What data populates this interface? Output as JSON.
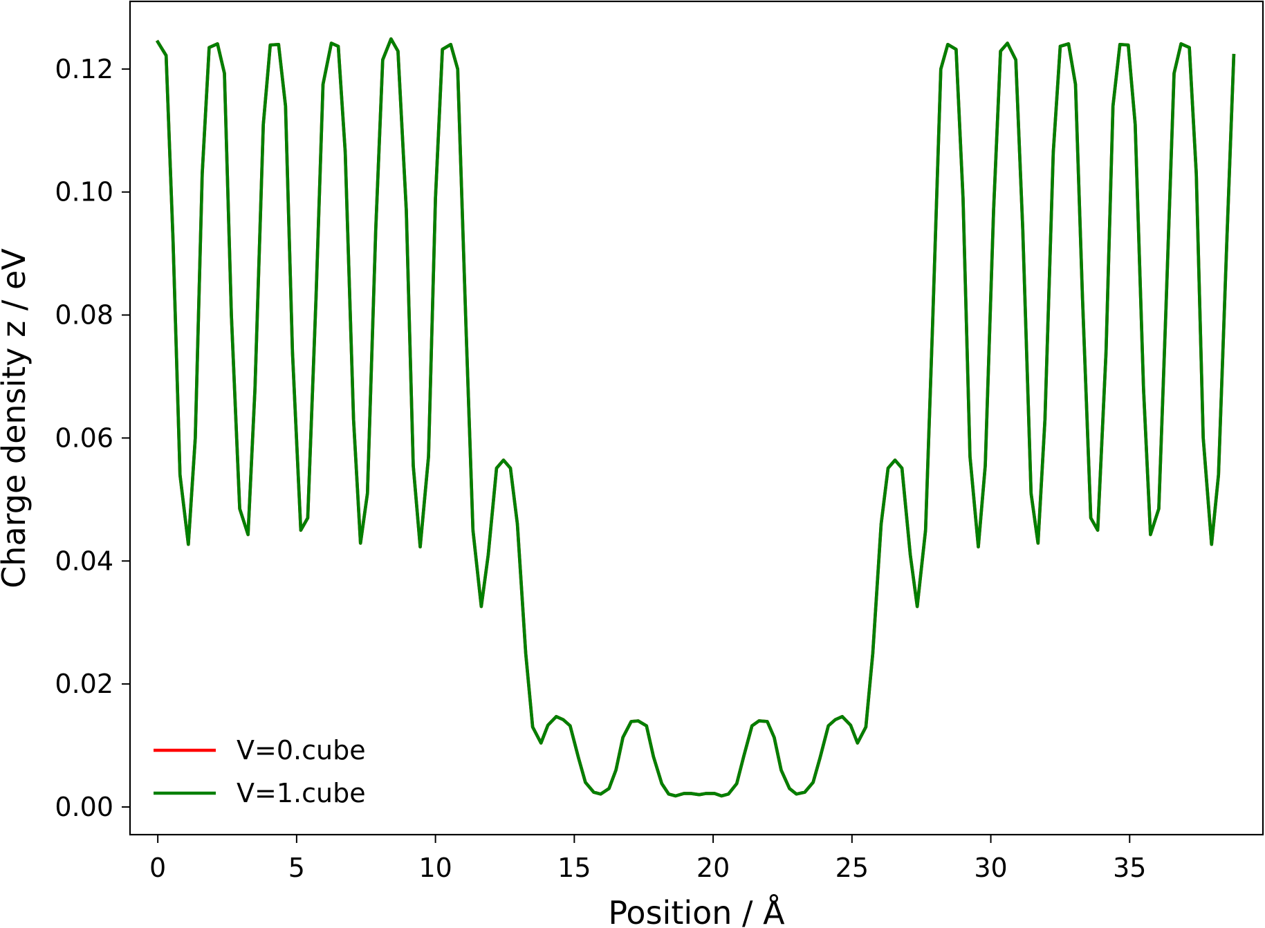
{
  "chart_data": {
    "type": "line",
    "title": "",
    "xlabel": "Position / Å",
    "ylabel": "Charge density z / eV",
    "xlim": [
      -1.0,
      39.8
    ],
    "ylim": [
      -0.0045,
      0.131
    ],
    "xticks": [
      {
        "value": 0,
        "label": "0"
      },
      {
        "value": 5,
        "label": "5"
      },
      {
        "value": 10,
        "label": "10"
      },
      {
        "value": 15,
        "label": "15"
      },
      {
        "value": 20,
        "label": "20"
      },
      {
        "value": 25,
        "label": "25"
      },
      {
        "value": 30,
        "label": "30"
      },
      {
        "value": 35,
        "label": "35"
      }
    ],
    "yticks": [
      {
        "value": 0.0,
        "label": "0.00"
      },
      {
        "value": 0.02,
        "label": "0.02"
      },
      {
        "value": 0.04,
        "label": "0.04"
      },
      {
        "value": 0.06,
        "label": "0.06"
      },
      {
        "value": 0.08,
        "label": "0.08"
      },
      {
        "value": 0.1,
        "label": "0.10"
      },
      {
        "value": 0.12,
        "label": "0.12"
      }
    ],
    "grid": false,
    "legend_position": "lower-left",
    "series": [
      {
        "name": "V=0.cube",
        "color": "#ff0000",
        "points": [
          [
            0.0,
            0.1244
          ],
          [
            0.3,
            0.1222
          ],
          [
            0.55,
            0.092
          ],
          [
            0.8,
            0.054
          ],
          [
            1.1,
            0.0427
          ],
          [
            1.35,
            0.06
          ],
          [
            1.6,
            0.103
          ],
          [
            1.85,
            0.1235
          ],
          [
            2.15,
            0.1241
          ],
          [
            2.4,
            0.1193
          ],
          [
            2.65,
            0.08
          ],
          [
            2.95,
            0.0485
          ],
          [
            3.25,
            0.0443
          ],
          [
            3.5,
            0.068
          ],
          [
            3.8,
            0.111
          ],
          [
            4.05,
            0.1239
          ],
          [
            4.35,
            0.124
          ],
          [
            4.6,
            0.114
          ],
          [
            4.85,
            0.074
          ],
          [
            5.15,
            0.045
          ],
          [
            5.4,
            0.047
          ],
          [
            5.7,
            0.083
          ],
          [
            5.95,
            0.1175
          ],
          [
            6.25,
            0.1242
          ],
          [
            6.5,
            0.1237
          ],
          [
            6.75,
            0.1065
          ],
          [
            7.05,
            0.063
          ],
          [
            7.3,
            0.0429
          ],
          [
            7.55,
            0.051
          ],
          [
            7.85,
            0.094
          ],
          [
            8.1,
            0.1215
          ],
          [
            8.4,
            0.1249
          ],
          [
            8.65,
            0.1229
          ],
          [
            8.95,
            0.097
          ],
          [
            9.2,
            0.0555
          ],
          [
            9.45,
            0.0423
          ],
          [
            9.75,
            0.057
          ],
          [
            10.0,
            0.099
          ],
          [
            10.25,
            0.1232
          ],
          [
            10.55,
            0.124
          ],
          [
            10.8,
            0.12
          ],
          [
            11.1,
            0.078
          ],
          [
            11.35,
            0.045
          ],
          [
            11.65,
            0.0326
          ],
          [
            11.9,
            0.041
          ],
          [
            12.2,
            0.0551
          ],
          [
            12.45,
            0.0564
          ],
          [
            12.7,
            0.0551
          ],
          [
            12.95,
            0.046
          ],
          [
            13.25,
            0.025
          ],
          [
            13.5,
            0.013
          ],
          [
            13.8,
            0.0104
          ],
          [
            14.05,
            0.0133
          ],
          [
            14.35,
            0.0147
          ],
          [
            14.6,
            0.0142
          ],
          [
            14.85,
            0.0132
          ],
          [
            15.15,
            0.008
          ],
          [
            15.4,
            0.004
          ],
          [
            15.7,
            0.0024
          ],
          [
            15.95,
            0.0021
          ],
          [
            16.25,
            0.003
          ],
          [
            16.5,
            0.006
          ],
          [
            16.75,
            0.0113
          ],
          [
            17.05,
            0.0139
          ],
          [
            17.3,
            0.014
          ],
          [
            17.6,
            0.0132
          ],
          [
            17.85,
            0.0082
          ],
          [
            18.15,
            0.0038
          ],
          [
            18.4,
            0.0021
          ],
          [
            18.65,
            0.0018
          ],
          [
            18.95,
            0.0022
          ],
          [
            19.2,
            0.0022
          ],
          [
            19.5,
            0.002
          ],
          [
            19.75,
            0.0022
          ],
          [
            20.05,
            0.0022
          ],
          [
            20.3,
            0.0018
          ],
          [
            20.55,
            0.0021
          ],
          [
            20.85,
            0.0038
          ],
          [
            21.1,
            0.0082
          ],
          [
            21.4,
            0.0132
          ],
          [
            21.65,
            0.014
          ],
          [
            21.95,
            0.0139
          ],
          [
            22.2,
            0.0113
          ],
          [
            22.45,
            0.006
          ],
          [
            22.75,
            0.003
          ],
          [
            23.0,
            0.0021
          ],
          [
            23.3,
            0.0024
          ],
          [
            23.6,
            0.004
          ],
          [
            23.85,
            0.008
          ],
          [
            24.15,
            0.0132
          ],
          [
            24.4,
            0.0142
          ],
          [
            24.65,
            0.0147
          ],
          [
            24.95,
            0.0133
          ],
          [
            25.2,
            0.0104
          ],
          [
            25.5,
            0.013
          ],
          [
            25.75,
            0.025
          ],
          [
            26.05,
            0.046
          ],
          [
            26.3,
            0.0551
          ],
          [
            26.55,
            0.0564
          ],
          [
            26.8,
            0.0551
          ],
          [
            27.1,
            0.041
          ],
          [
            27.35,
            0.0326
          ],
          [
            27.65,
            0.045
          ],
          [
            27.9,
            0.078
          ],
          [
            28.2,
            0.12
          ],
          [
            28.45,
            0.124
          ],
          [
            28.75,
            0.1232
          ],
          [
            29.0,
            0.099
          ],
          [
            29.25,
            0.057
          ],
          [
            29.55,
            0.0423
          ],
          [
            29.8,
            0.0555
          ],
          [
            30.1,
            0.097
          ],
          [
            30.35,
            0.1229
          ],
          [
            30.6,
            0.1242
          ],
          [
            30.9,
            0.1215
          ],
          [
            31.15,
            0.094
          ],
          [
            31.45,
            0.051
          ],
          [
            31.7,
            0.0429
          ],
          [
            31.95,
            0.063
          ],
          [
            32.25,
            0.1065
          ],
          [
            32.5,
            0.1237
          ],
          [
            32.8,
            0.1241
          ],
          [
            33.05,
            0.1175
          ],
          [
            33.3,
            0.083
          ],
          [
            33.6,
            0.047
          ],
          [
            33.85,
            0.045
          ],
          [
            34.15,
            0.074
          ],
          [
            34.4,
            0.114
          ],
          [
            34.65,
            0.124
          ],
          [
            34.95,
            0.1239
          ],
          [
            35.2,
            0.111
          ],
          [
            35.5,
            0.068
          ],
          [
            35.75,
            0.0443
          ],
          [
            36.05,
            0.0485
          ],
          [
            36.3,
            0.08
          ],
          [
            36.6,
            0.1193
          ],
          [
            36.85,
            0.1241
          ],
          [
            37.15,
            0.1235
          ],
          [
            37.4,
            0.103
          ],
          [
            37.65,
            0.06
          ],
          [
            37.95,
            0.0427
          ],
          [
            38.2,
            0.054
          ],
          [
            38.5,
            0.092
          ],
          [
            38.75,
            0.1222
          ]
        ]
      },
      {
        "name": "V=1.cube",
        "color": "#007f00",
        "points": [
          [
            0.0,
            0.1244
          ],
          [
            0.3,
            0.1222
          ],
          [
            0.55,
            0.092
          ],
          [
            0.8,
            0.054
          ],
          [
            1.1,
            0.0427
          ],
          [
            1.35,
            0.06
          ],
          [
            1.6,
            0.103
          ],
          [
            1.85,
            0.1235
          ],
          [
            2.15,
            0.1241
          ],
          [
            2.4,
            0.1193
          ],
          [
            2.65,
            0.08
          ],
          [
            2.95,
            0.0485
          ],
          [
            3.25,
            0.0443
          ],
          [
            3.5,
            0.068
          ],
          [
            3.8,
            0.111
          ],
          [
            4.05,
            0.1239
          ],
          [
            4.35,
            0.124
          ],
          [
            4.6,
            0.114
          ],
          [
            4.85,
            0.074
          ],
          [
            5.15,
            0.045
          ],
          [
            5.4,
            0.047
          ],
          [
            5.7,
            0.083
          ],
          [
            5.95,
            0.1175
          ],
          [
            6.25,
            0.1242
          ],
          [
            6.5,
            0.1237
          ],
          [
            6.75,
            0.1065
          ],
          [
            7.05,
            0.063
          ],
          [
            7.3,
            0.0429
          ],
          [
            7.55,
            0.051
          ],
          [
            7.85,
            0.094
          ],
          [
            8.1,
            0.1215
          ],
          [
            8.4,
            0.1249
          ],
          [
            8.65,
            0.1229
          ],
          [
            8.95,
            0.097
          ],
          [
            9.2,
            0.0555
          ],
          [
            9.45,
            0.0423
          ],
          [
            9.75,
            0.057
          ],
          [
            10.0,
            0.099
          ],
          [
            10.25,
            0.1232
          ],
          [
            10.55,
            0.124
          ],
          [
            10.8,
            0.12
          ],
          [
            11.1,
            0.078
          ],
          [
            11.35,
            0.045
          ],
          [
            11.65,
            0.0326
          ],
          [
            11.9,
            0.041
          ],
          [
            12.2,
            0.0551
          ],
          [
            12.45,
            0.0564
          ],
          [
            12.7,
            0.0551
          ],
          [
            12.95,
            0.046
          ],
          [
            13.25,
            0.025
          ],
          [
            13.5,
            0.013
          ],
          [
            13.8,
            0.0104
          ],
          [
            14.05,
            0.0133
          ],
          [
            14.35,
            0.0147
          ],
          [
            14.6,
            0.0142
          ],
          [
            14.85,
            0.0132
          ],
          [
            15.15,
            0.008
          ],
          [
            15.4,
            0.004
          ],
          [
            15.7,
            0.0024
          ],
          [
            15.95,
            0.0021
          ],
          [
            16.25,
            0.003
          ],
          [
            16.5,
            0.006
          ],
          [
            16.75,
            0.0113
          ],
          [
            17.05,
            0.0139
          ],
          [
            17.3,
            0.014
          ],
          [
            17.6,
            0.0132
          ],
          [
            17.85,
            0.0082
          ],
          [
            18.15,
            0.0038
          ],
          [
            18.4,
            0.0021
          ],
          [
            18.65,
            0.0018
          ],
          [
            18.95,
            0.0022
          ],
          [
            19.2,
            0.0022
          ],
          [
            19.5,
            0.002
          ],
          [
            19.75,
            0.0022
          ],
          [
            20.05,
            0.0022
          ],
          [
            20.3,
            0.0018
          ],
          [
            20.55,
            0.0021
          ],
          [
            20.85,
            0.0038
          ],
          [
            21.1,
            0.0082
          ],
          [
            21.4,
            0.0132
          ],
          [
            21.65,
            0.014
          ],
          [
            21.95,
            0.0139
          ],
          [
            22.2,
            0.0113
          ],
          [
            22.45,
            0.006
          ],
          [
            22.75,
            0.003
          ],
          [
            23.0,
            0.0021
          ],
          [
            23.3,
            0.0024
          ],
          [
            23.6,
            0.004
          ],
          [
            23.85,
            0.008
          ],
          [
            24.15,
            0.0132
          ],
          [
            24.4,
            0.0142
          ],
          [
            24.65,
            0.0147
          ],
          [
            24.95,
            0.0133
          ],
          [
            25.2,
            0.0104
          ],
          [
            25.5,
            0.013
          ],
          [
            25.75,
            0.025
          ],
          [
            26.05,
            0.046
          ],
          [
            26.3,
            0.0551
          ],
          [
            26.55,
            0.0564
          ],
          [
            26.8,
            0.0551
          ],
          [
            27.1,
            0.041
          ],
          [
            27.35,
            0.0326
          ],
          [
            27.65,
            0.045
          ],
          [
            27.9,
            0.078
          ],
          [
            28.2,
            0.12
          ],
          [
            28.45,
            0.124
          ],
          [
            28.75,
            0.1232
          ],
          [
            29.0,
            0.099
          ],
          [
            29.25,
            0.057
          ],
          [
            29.55,
            0.0423
          ],
          [
            29.8,
            0.0555
          ],
          [
            30.1,
            0.097
          ],
          [
            30.35,
            0.1229
          ],
          [
            30.6,
            0.1242
          ],
          [
            30.9,
            0.1215
          ],
          [
            31.15,
            0.094
          ],
          [
            31.45,
            0.051
          ],
          [
            31.7,
            0.0429
          ],
          [
            31.95,
            0.063
          ],
          [
            32.25,
            0.1065
          ],
          [
            32.5,
            0.1237
          ],
          [
            32.8,
            0.1241
          ],
          [
            33.05,
            0.1175
          ],
          [
            33.3,
            0.083
          ],
          [
            33.6,
            0.047
          ],
          [
            33.85,
            0.045
          ],
          [
            34.15,
            0.074
          ],
          [
            34.4,
            0.114
          ],
          [
            34.65,
            0.124
          ],
          [
            34.95,
            0.1239
          ],
          [
            35.2,
            0.111
          ],
          [
            35.5,
            0.068
          ],
          [
            35.75,
            0.0443
          ],
          [
            36.05,
            0.0485
          ],
          [
            36.3,
            0.08
          ],
          [
            36.6,
            0.1193
          ],
          [
            36.85,
            0.1241
          ],
          [
            37.15,
            0.1235
          ],
          [
            37.4,
            0.103
          ],
          [
            37.65,
            0.06
          ],
          [
            37.95,
            0.0427
          ],
          [
            38.2,
            0.054
          ],
          [
            38.5,
            0.092
          ],
          [
            38.75,
            0.1222
          ]
        ]
      }
    ]
  }
}
